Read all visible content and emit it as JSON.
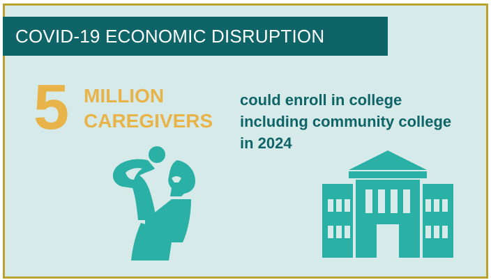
{
  "banner": {
    "title": "COVID-19 ECONOMIC DISRUPTION"
  },
  "stat": {
    "number": "5",
    "label_line1": "MILLION",
    "label_line2": "CAREGIVERS"
  },
  "description": {
    "line1": "could enroll in college",
    "line2": "including community college",
    "line3": "in 2024"
  },
  "icons": {
    "caregiver": "caregiver-with-child-icon",
    "college": "college-building-icon"
  },
  "colors": {
    "teal_dark": "#0f6467",
    "teal_light": "#2bb0a5",
    "gold": "#e8b449",
    "border_gold": "#b9a22e",
    "background": "#d6eaea"
  }
}
